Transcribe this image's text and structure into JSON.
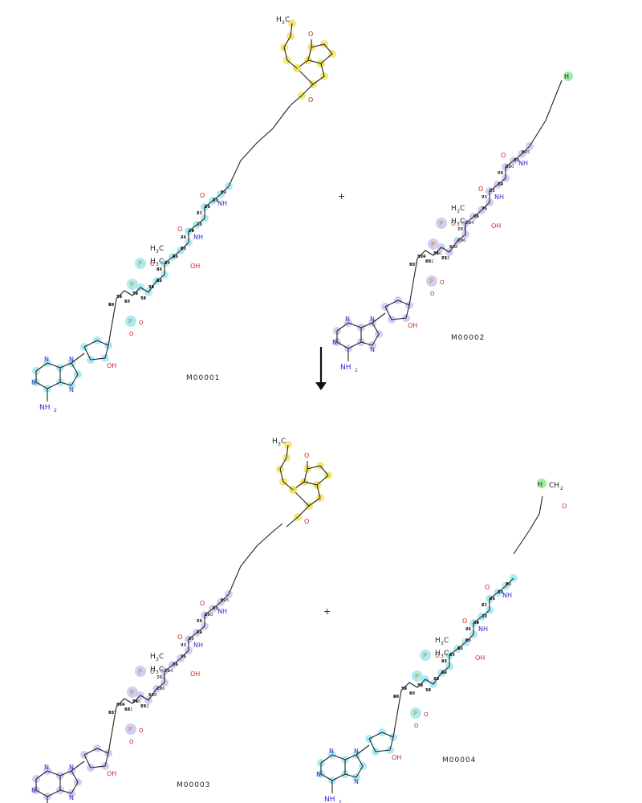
{
  "reaction": {
    "plus": "+",
    "reactants": [
      {
        "id": "M00001",
        "label": "M00001",
        "highlight": "cyan+yellow"
      },
      {
        "id": "M00002",
        "label": "M00002",
        "highlight": "purple"
      }
    ],
    "products": [
      {
        "id": "M00003",
        "label": "M00003",
        "highlight": "yellow+purple"
      },
      {
        "id": "M00004",
        "label": "M00004",
        "highlight": "cyan"
      }
    ]
  },
  "colors": {
    "cyan": "#9ee8f0",
    "yellow": "#f2e463",
    "purple": "#c9c4f2",
    "green": "#8fe88f",
    "nitrogen": "#2a2acc",
    "oxygen": "#cc2222",
    "phosphorus": "#d98a00",
    "bond": "#222222"
  },
  "atoms": {
    "ch3": "CH3",
    "nh": "NH",
    "oh": "OH",
    "nh2": "NH2",
    "o": "O",
    "ominus": "O-",
    "n": "N",
    "p": "P",
    "h": "H",
    "ch2": "CH2"
  },
  "numbers_m1": [
    "60",
    "57",
    "50",
    "56",
    "55",
    "53",
    "52",
    "48",
    "47",
    "46",
    "45",
    "41",
    "39",
    "38",
    "31",
    "26",
    "29",
    "30",
    "24",
    "23",
    "15",
    "19",
    "18",
    "11",
    "12",
    "5",
    "4",
    "6",
    "65",
    "2",
    "64",
    "3",
    "1",
    "7",
    "9",
    "8",
    "10",
    "16",
    "13",
    "17",
    "14",
    "20",
    "22",
    "21",
    "25",
    "27",
    "28",
    "24",
    "36",
    "37",
    "62",
    "61",
    "51",
    "42",
    "40",
    "39",
    "43",
    "32",
    "33",
    "34",
    "44"
  ],
  "numbers_m2": [
    "91",
    "184",
    "90",
    "84",
    "89",
    "88",
    "77",
    "76",
    "72",
    "94",
    "96",
    "97",
    "67",
    "69",
    "66",
    "100",
    "99",
    "105",
    "107",
    "109",
    "111",
    "110",
    "112",
    "108",
    "106",
    "102",
    "104",
    "95",
    "71",
    "73",
    "81",
    "74",
    "79",
    "85",
    "83",
    "82",
    "80",
    "87",
    "86",
    "78",
    "75"
  ]
}
